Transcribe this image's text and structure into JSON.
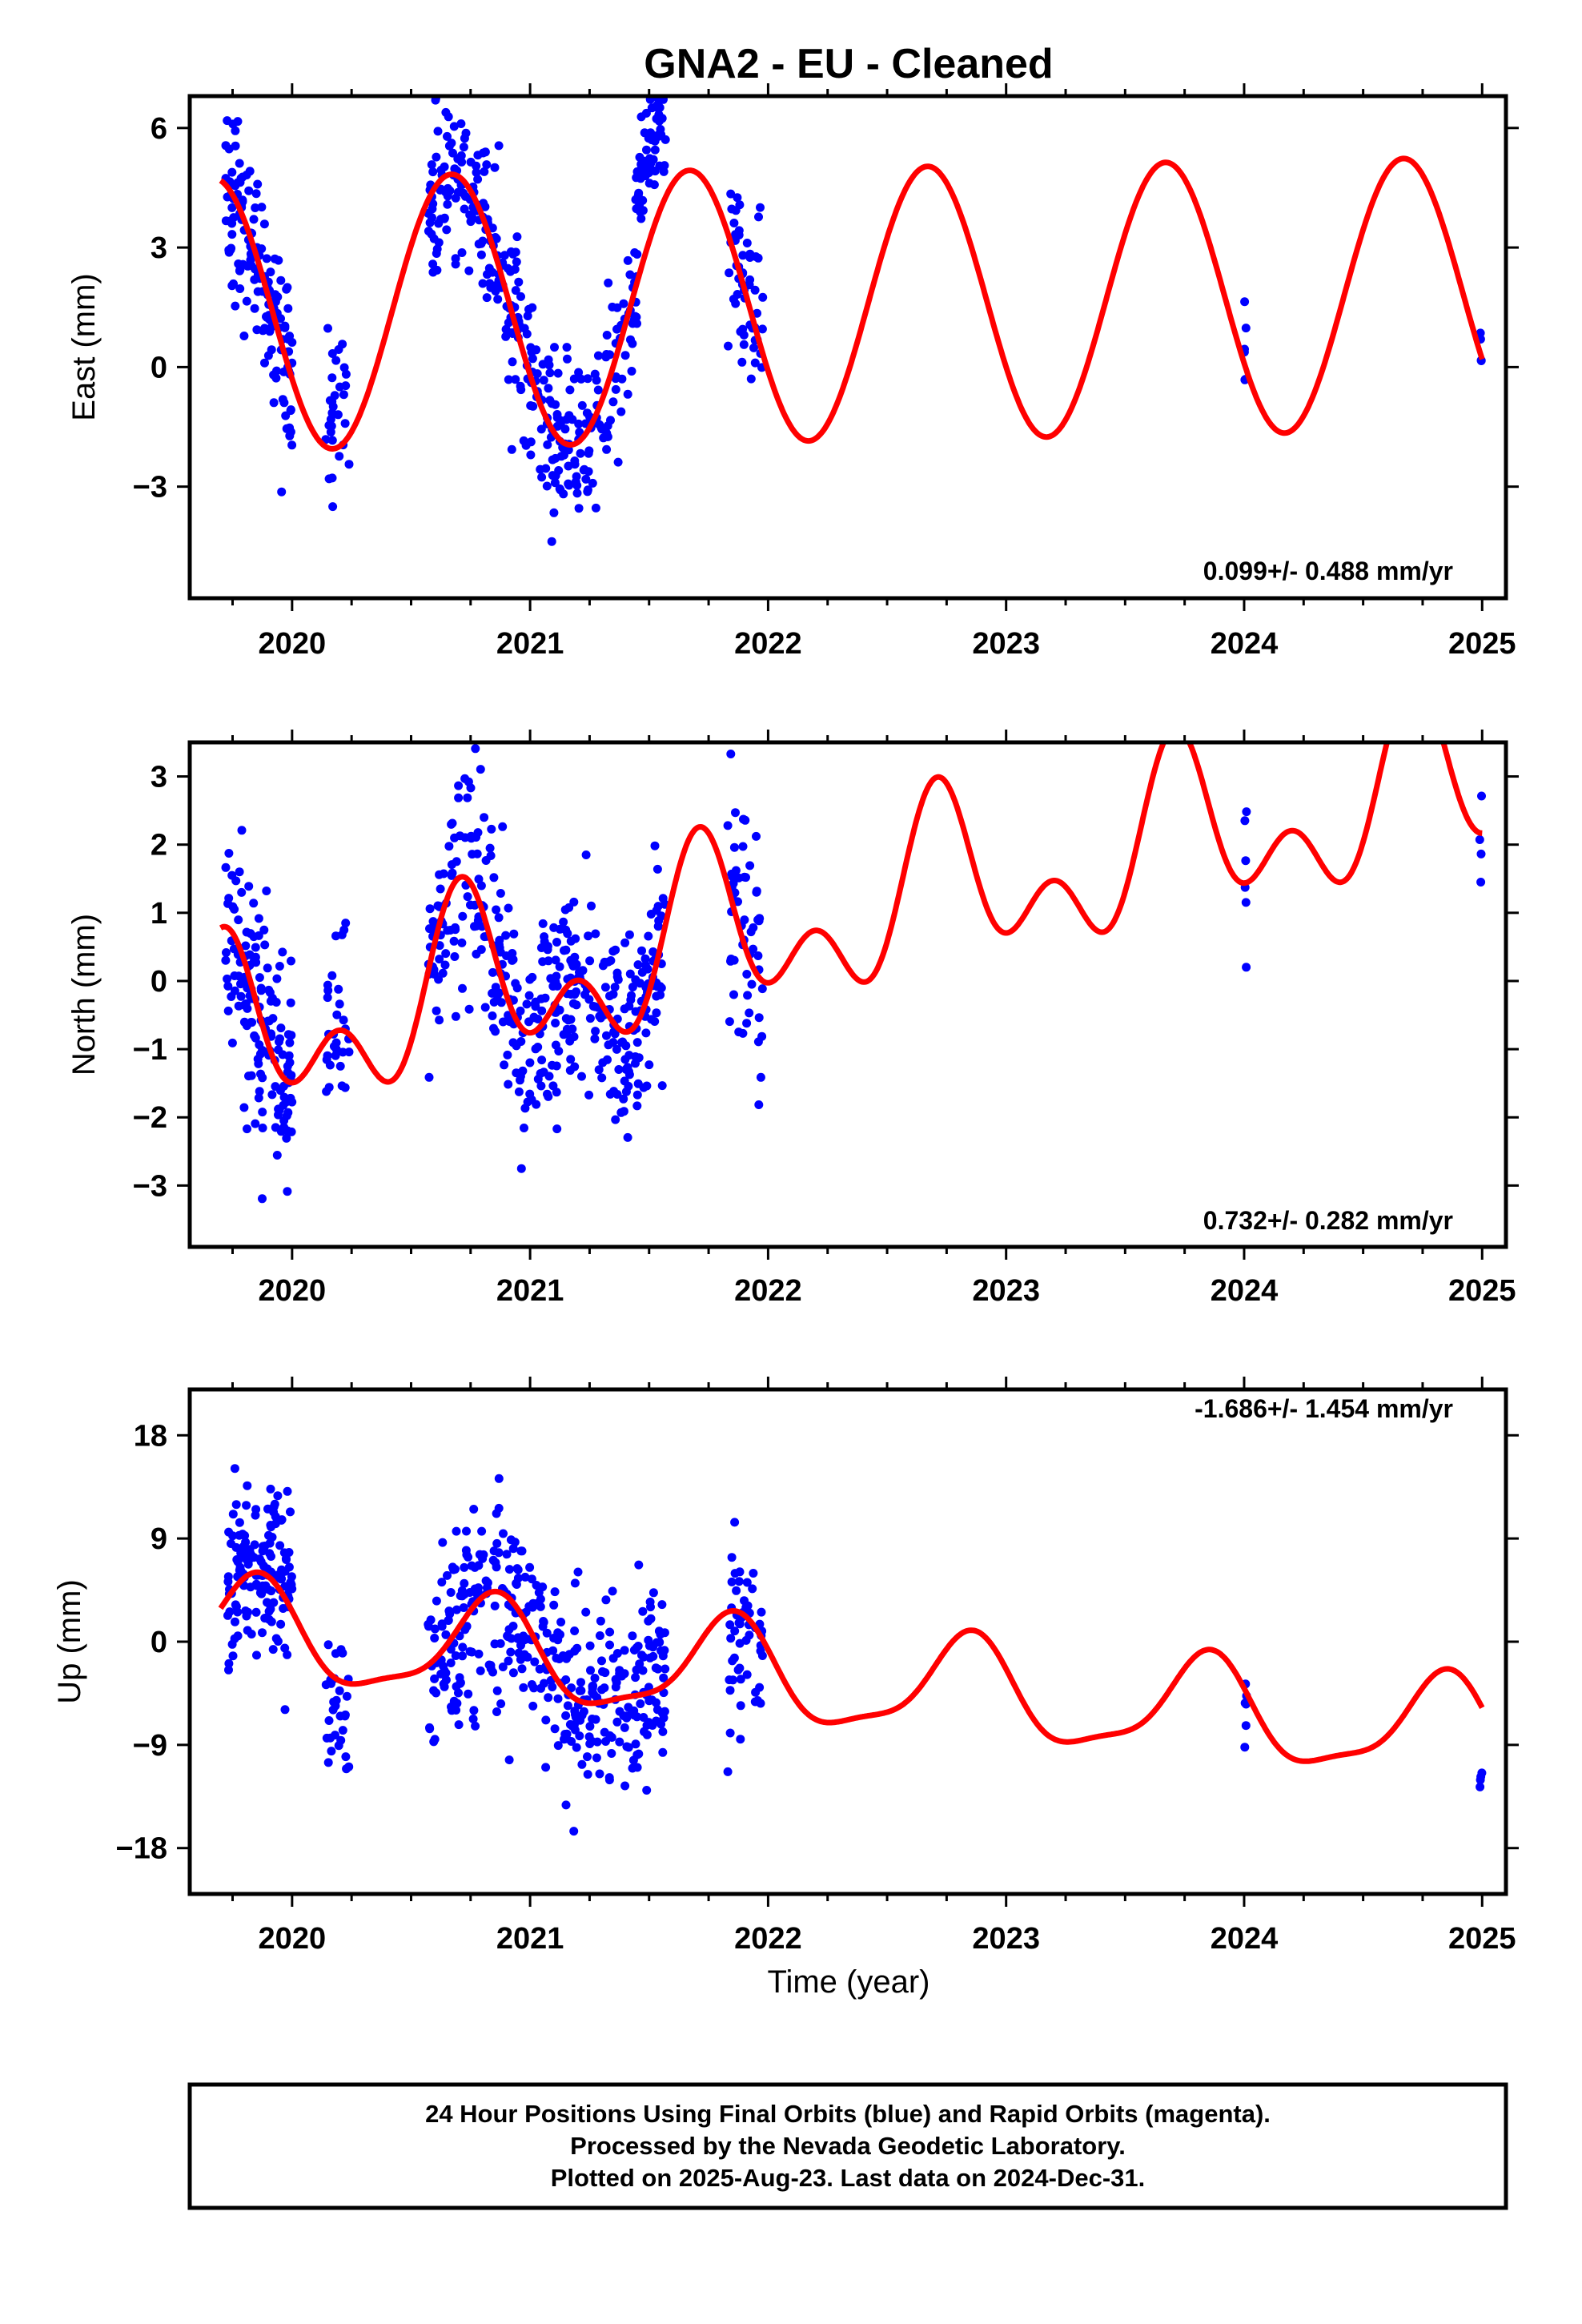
{
  "title": "GNA2  - EU - Cleaned",
  "xlabel": "Time (year)",
  "footer": {
    "line1": "24 Hour Positions Using Final Orbits (blue) and Rapid Orbits (magenta).",
    "line2": "Processed by the Nevada Geodetic Laboratory.",
    "line3": "Plotted on 2025-Aug-23. Last data on 2024-Dec-31."
  },
  "colors": {
    "points": "#0000ff",
    "fit": "#ff0000",
    "frame": "#000000"
  },
  "chart_data": [
    {
      "type": "scatter",
      "ylabel": "East (mm)",
      "rate_label": "0.099+/- 0.488 mm/yr",
      "xlim": [
        2019.57,
        2025.1
      ],
      "ylim": [
        -5.8,
        6.8
      ],
      "x_ticks": [
        2020,
        2021,
        2022,
        2023,
        2024,
        2025
      ],
      "x_tick_labels": [
        "2020",
        "2021",
        "2022",
        "2023",
        "2024",
        "2025"
      ],
      "y_ticks": [
        -3,
        0,
        3,
        6
      ],
      "y_tick_labels": [
        "−3",
        "0",
        "3",
        "6"
      ],
      "fit_model": {
        "offset": 1.55,
        "rate": 0.099,
        "a1": 3.42,
        "p1": 0.42,
        "a2": 0.0,
        "p2": 0.0,
        "t0": 2022.0
      },
      "segments": [
        {
          "x0": 2019.72,
          "x1": 2020.0,
          "n": 150,
          "c": 1.4,
          "noise": 1.25
        },
        {
          "x0": 2020.14,
          "x1": 2020.24,
          "n": 30,
          "c": 2.4,
          "noise": 1.3
        },
        {
          "x0": 2020.57,
          "x1": 2021.45,
          "n": 330,
          "c": 1.4,
          "noise": 1.2
        },
        {
          "x0": 2021.44,
          "x1": 2021.57,
          "n": 60,
          "c": 4.8,
          "noise": 0.8
        },
        {
          "x0": 2021.83,
          "x1": 2021.98,
          "n": 55,
          "c": 1.4,
          "noise": 1.5
        },
        {
          "x0": 2024.0,
          "x1": 2024.01,
          "n": 6,
          "c": 1.4,
          "noise": 1.5
        },
        {
          "x0": 2024.99,
          "x1": 2025.0,
          "n": 4,
          "c": 1.4,
          "noise": 0.8
        }
      ]
    },
    {
      "type": "scatter",
      "ylabel": "North (mm)",
      "rate_label": "0.732+/- 0.282 mm/yr",
      "xlim": [
        2019.57,
        2025.1
      ],
      "ylim": [
        -3.9,
        3.5
      ],
      "x_ticks": [
        2020,
        2021,
        2022,
        2023,
        2024,
        2025
      ],
      "x_tick_labels": [
        "2020",
        "2021",
        "2022",
        "2023",
        "2024",
        "2025"
      ],
      "y_ticks": [
        -3,
        -2,
        -1,
        0,
        1,
        2,
        3
      ],
      "y_tick_labels": [
        "−3",
        "−2",
        "−1",
        "0",
        "1",
        "2",
        "3"
      ],
      "fit_model": {
        "offset": 0.75,
        "rate": 0.732,
        "a1": 0.95,
        "p1": 0.48,
        "a2": 0.78,
        "p2": 0.08,
        "t0": 2022.0
      },
      "segments": [
        {
          "x0": 2019.72,
          "x1": 2020.0,
          "n": 150,
          "c": 1.0,
          "noise": 1.0
        },
        {
          "x0": 2020.14,
          "x1": 2020.24,
          "n": 30,
          "c": 1.0,
          "noise": 1.1
        },
        {
          "x0": 2020.57,
          "x1": 2021.45,
          "n": 330,
          "c": 1.0,
          "noise": 1.0
        },
        {
          "x0": 2021.44,
          "x1": 2021.57,
          "n": 60,
          "c": 1.0,
          "noise": 0.8
        },
        {
          "x0": 2021.83,
          "x1": 2021.98,
          "n": 55,
          "c": 1.0,
          "noise": 1.2
        },
        {
          "x0": 2024.0,
          "x1": 2024.01,
          "n": 6,
          "c": 1.0,
          "noise": 1.2
        },
        {
          "x0": 2024.99,
          "x1": 2025.0,
          "n": 4,
          "c": 1.0,
          "noise": 0.7
        }
      ]
    },
    {
      "type": "scatter",
      "ylabel": "Up (mm)",
      "rate_label": "-1.686+/- 1.454 mm/yr",
      "xlim": [
        2019.57,
        2025.1
      ],
      "ylim": [
        -22,
        22
      ],
      "x_ticks": [
        2020,
        2021,
        2022,
        2023,
        2024,
        2025
      ],
      "x_tick_labels": [
        "2020",
        "2021",
        "2022",
        "2023",
        "2024",
        "2025"
      ],
      "y_ticks": [
        -18,
        -9,
        0,
        9,
        18
      ],
      "y_tick_labels": [
        "−18",
        "−9",
        "0",
        "9",
        "18"
      ],
      "fit_model": {
        "offset": -3.0,
        "rate": -1.686,
        "a1": 4.3,
        "p1": 0.59,
        "a2": 1.2,
        "p2": 0.25,
        "t0": 2022.0
      },
      "segments": [
        {
          "x0": 2019.72,
          "x1": 2020.0,
          "n": 150,
          "c": 2.0,
          "noise": 4.5
        },
        {
          "x0": 2020.14,
          "x1": 2020.24,
          "n": 30,
          "c": -5.0,
          "noise": 4.0
        },
        {
          "x0": 2020.57,
          "x1": 2021.45,
          "n": 330,
          "c": 0.0,
          "noise": 5.0
        },
        {
          "x0": 2021.44,
          "x1": 2021.57,
          "n": 60,
          "c": 2.0,
          "noise": 4.0
        },
        {
          "x0": 2021.83,
          "x1": 2021.98,
          "n": 55,
          "c": -3.0,
          "noise": 5.5
        },
        {
          "x0": 2024.0,
          "x1": 2024.01,
          "n": 6,
          "c": -4.0,
          "noise": 4.0
        },
        {
          "x0": 2024.99,
          "x1": 2025.0,
          "n": 4,
          "c": -11.0,
          "noise": 1.0
        }
      ]
    }
  ]
}
